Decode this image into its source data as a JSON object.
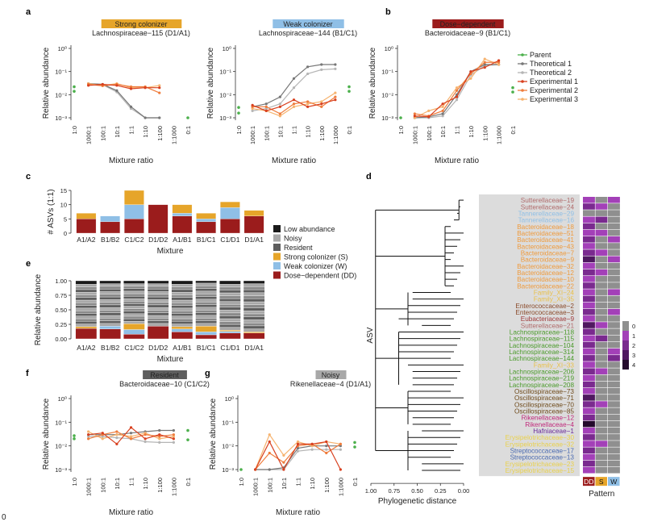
{
  "colors": {
    "parent": "#4cb04c",
    "theoretical1": "#777777",
    "theoretical2": "#b5b5b5",
    "experimental1": "#d8401f",
    "experimental2": "#ef7c3c",
    "experimental3": "#f6b36f",
    "low_abundance": "#1a1a1a",
    "noisy": "#a8a8a8",
    "resident": "#5e5e5e",
    "strong": "#e6a52a",
    "weak": "#8fbfe6",
    "dose": "#9b1c1c"
  },
  "panel_labels": {
    "a": "a",
    "b": "b",
    "c": "c",
    "d": "d",
    "e": "e",
    "f": "f",
    "g": "g"
  },
  "line_charts": [
    {
      "id": "a1",
      "badge": "Strong colonizer",
      "badge_color": "#e6a52a",
      "subtitle": "Lachnospiraceae−115 (D1/A1)",
      "xlabel": "Mixture ratio",
      "ylabel": "Relative abundance",
      "parent": [
        [
          0,
          0.022
        ],
        [
          0,
          0.014
        ],
        [
          8,
          0.001
        ]
      ],
      "series": {
        "t1": [
          0.03,
          0.028,
          0.015,
          0.003,
          0.001,
          0.001
        ],
        "t2": [
          0.03,
          0.027,
          0.013,
          0.0025,
          0.001,
          0.001
        ],
        "e1": [
          0.025,
          0.028,
          0.025,
          0.018,
          0.02,
          0.02
        ],
        "e2": [
          0.028,
          0.024,
          0.028,
          0.022,
          0.022,
          0.012
        ],
        "e3": [
          0.03,
          0.025,
          0.03,
          0.02,
          0.02,
          0.025
        ]
      }
    },
    {
      "id": "a2",
      "badge": "Weak colonizer",
      "badge_color": "#8fbfe6",
      "subtitle": "Lachnospiraceae−144 (B1/C1)",
      "xlabel": "Mixture ratio",
      "ylabel": "Relative abundance",
      "parent": [
        [
          0,
          0.0028
        ],
        [
          0,
          0.0016
        ],
        [
          8,
          0.022
        ],
        [
          8,
          0.014
        ]
      ],
      "series": {
        "t1": [
          0.003,
          0.004,
          0.008,
          0.05,
          0.16,
          0.2,
          0.2
        ],
        "t2": [
          0.002,
          0.0025,
          0.004,
          0.02,
          0.08,
          0.12,
          0.13
        ],
        "e1": [
          0.0035,
          0.002,
          0.003,
          0.006,
          0.003,
          0.004,
          0.006
        ],
        "e2": [
          0.003,
          0.003,
          0.0015,
          0.004,
          0.005,
          0.003,
          0.008
        ],
        "e3": [
          0.0025,
          0.002,
          0.0012,
          0.003,
          0.004,
          0.005,
          0.012
        ]
      }
    },
    {
      "id": "b",
      "badge": "Dose−dependent",
      "badge_color": "#9b1c1c",
      "subtitle": "Bacteroidaceae−9 (B1/C1)",
      "xlabel": "Mixture ratio",
      "ylabel": "Relative abundance",
      "parent": [
        [
          0,
          0.001
        ],
        [
          8,
          0.02
        ],
        [
          8,
          0.013
        ]
      ],
      "series": {
        "t1": [
          0.001,
          0.0011,
          0.0015,
          0.01,
          0.1,
          0.2,
          0.2
        ],
        "t2": [
          0.001,
          0.001,
          0.0012,
          0.006,
          0.07,
          0.18,
          0.2
        ],
        "e1": [
          0.0012,
          0.0011,
          0.004,
          0.008,
          0.1,
          0.15,
          0.3
        ],
        "e2": [
          0.0015,
          0.0012,
          0.002,
          0.015,
          0.08,
          0.25,
          0.25
        ],
        "e3": [
          0.001,
          0.002,
          0.003,
          0.02,
          0.05,
          0.35,
          0.2
        ]
      }
    },
    {
      "id": "f",
      "badge": "Resident",
      "badge_color": "#5e5e5e",
      "subtitle": "Bacteroidaceae−10 (C1/C2)",
      "xlabel": "Mixture ratio",
      "ylabel": "Relative abundance",
      "parent": [
        [
          0,
          0.027
        ],
        [
          0,
          0.02
        ],
        [
          8,
          0.045
        ],
        [
          8,
          0.018
        ]
      ],
      "series": {
        "t1": [
          0.03,
          0.03,
          0.03,
          0.035,
          0.04,
          0.045,
          0.045
        ],
        "t2": [
          0.025,
          0.025,
          0.022,
          0.02,
          0.015,
          0.014,
          0.014
        ],
        "e1": [
          0.03,
          0.035,
          0.012,
          0.06,
          0.02,
          0.03,
          0.02
        ],
        "e2": [
          0.02,
          0.03,
          0.04,
          0.02,
          0.03,
          0.025,
          0.03
        ],
        "e3": [
          0.04,
          0.02,
          0.03,
          0.025,
          0.035,
          0.02,
          0.025
        ]
      }
    },
    {
      "id": "g",
      "badge": "Noisy",
      "badge_color": "#a8a8a8",
      "subtitle": "Rikenellaceae−4 (D1/A1)",
      "xlabel": "Mixture ratio",
      "ylabel": "Relative abundance",
      "parent": [
        [
          0,
          0.001
        ],
        [
          8,
          0.014
        ],
        [
          8,
          0.009
        ]
      ],
      "series": {
        "t1": [
          0.001,
          0.001,
          0.0012,
          0.008,
          0.01,
          0.01,
          0.01
        ],
        "t2": [
          0.001,
          0.001,
          0.001,
          0.006,
          0.007,
          0.007,
          0.007
        ],
        "e1": [
          0.001,
          0.015,
          0.001,
          0.012,
          0.012,
          0.015,
          0.001
        ],
        "e2": [
          0.001,
          0.005,
          0.002,
          0.01,
          0.012,
          0.005,
          0.012
        ],
        "e3": [
          0.001,
          0.03,
          0.004,
          0.015,
          0.01,
          0.015,
          0.012
        ]
      }
    }
  ],
  "x_ticks": [
    "1:0",
    "1000:1",
    "100:1",
    "10:1",
    "1:1",
    "1:10",
    "1:100",
    "1:1000",
    "0:1"
  ],
  "y_ticks": [
    "10⁰",
    "10⁻¹",
    "10⁻²",
    "10⁻³"
  ],
  "legend_lines": [
    {
      "key": "parent",
      "label": "Parent"
    },
    {
      "key": "theoretical1",
      "label": "Theoretical 1"
    },
    {
      "key": "theoretical2",
      "label": "Theoretical 2"
    },
    {
      "key": "experimental1",
      "label": "Experimental 1"
    },
    {
      "key": "experimental2",
      "label": "Experimental 2"
    },
    {
      "key": "experimental3",
      "label": "Experimental 3"
    }
  ],
  "chart_data": {
    "type": "bar",
    "title": "# ASVs (1:1)",
    "xlabel": "Mixture",
    "ylabel": "# ASVs (1:1)",
    "ylim": [
      0,
      15
    ],
    "y_ticks": [
      "0",
      "5",
      "10",
      "15"
    ],
    "categories": [
      "A1/A2",
      "B1/B2",
      "C1/C2",
      "D1/D2",
      "A1/B1",
      "B1/C1",
      "C1/D1",
      "D1/A1"
    ],
    "series": [
      {
        "name": "Dose−dependent (DD)",
        "values": [
          5,
          4,
          5,
          10,
          6,
          4,
          5,
          6
        ]
      },
      {
        "name": "Weak colonizer (W)",
        "values": [
          0,
          2,
          5,
          0,
          1,
          1,
          4,
          0
        ]
      },
      {
        "name": "Strong colonizer (S)",
        "values": [
          2,
          0,
          5,
          0,
          3,
          2,
          2,
          2
        ]
      }
    ]
  },
  "legend_categories": [
    {
      "key": "low_abundance",
      "label": "Low abundance"
    },
    {
      "key": "noisy",
      "label": "Noisy"
    },
    {
      "key": "resident",
      "label": "Resident"
    },
    {
      "key": "strong",
      "label": "Strong colonizer (S)"
    },
    {
      "key": "weak",
      "label": "Weak colonizer (W)"
    },
    {
      "key": "dose",
      "label": "Dose−dependent (DD)"
    }
  ],
  "panel_e": {
    "ylabel": "Relative abundance",
    "xlabel": "Mixture",
    "y_ticks": [
      "1.00",
      "0.75",
      "0.50",
      "0.25",
      "0.00"
    ],
    "stacks": [
      {
        "dose": 0.18,
        "weak": 0,
        "strong": 0.03,
        "low": 0.06
      },
      {
        "dose": 0.17,
        "weak": 0.05,
        "strong": 0,
        "low": 0.05
      },
      {
        "dose": 0.08,
        "weak": 0.08,
        "strong": 0.1,
        "low": 0.05
      },
      {
        "dose": 0.22,
        "weak": 0,
        "strong": 0,
        "low": 0.05
      },
      {
        "dose": 0.12,
        "weak": 0.05,
        "strong": 0.04,
        "low": 0.06
      },
      {
        "dose": 0.07,
        "weak": 0.05,
        "strong": 0.1,
        "low": 0.04
      },
      {
        "dose": 0.1,
        "weak": 0.03,
        "strong": 0.02,
        "low": 0.06
      },
      {
        "dose": 0.1,
        "weak": 0,
        "strong": 0.02,
        "low": 0.05
      }
    ]
  },
  "panel_d": {
    "ylabel": "ASV",
    "xlabel": "Phylogenetic distance",
    "x_ticks": [
      "1.00",
      "0.75",
      "0.50",
      "0.25",
      "0.00"
    ],
    "pattern_label": "Pattern",
    "pattern_cols": [
      "DD",
      "S",
      "W"
    ],
    "scale_ticks": [
      "0",
      "1",
      "2",
      "3",
      "4"
    ],
    "asvs": [
      {
        "name": "Sutterellaceae−19",
        "color": "#b06b6b"
      },
      {
        "name": "Sutterellaceae−24",
        "color": "#b06b6b"
      },
      {
        "name": "Tannerellaceae−29",
        "color": "#8fbfe6"
      },
      {
        "name": "Tannerellaceae−16",
        "color": "#8fbfe6"
      },
      {
        "name": "Bacteroidaceae−18",
        "color": "#ef9a3c"
      },
      {
        "name": "Bacteroidaceae−51",
        "color": "#ef9a3c"
      },
      {
        "name": "Bacteroidaceae−41",
        "color": "#ef9a3c"
      },
      {
        "name": "Bacteroidaceae−43",
        "color": "#ef9a3c"
      },
      {
        "name": "Bacteroidaceae−7",
        "color": "#ef9a3c"
      },
      {
        "name": "Bacteroidaceae−9",
        "color": "#ef9a3c"
      },
      {
        "name": "Bacteroidaceae−32",
        "color": "#ef9a3c"
      },
      {
        "name": "Bacteroidaceae−12",
        "color": "#ef9a3c"
      },
      {
        "name": "Bacteroidaceae−10",
        "color": "#ef9a3c"
      },
      {
        "name": "Bacteroidaceae−22",
        "color": "#ef9a3c"
      },
      {
        "name": "Family_XI−24",
        "color": "#e9c04a"
      },
      {
        "name": "Family_XI−35",
        "color": "#e9c04a"
      },
      {
        "name": "Enterococcaceae−2",
        "color": "#8a4a2a"
      },
      {
        "name": "Enterococcaceae−3",
        "color": "#8a4a2a"
      },
      {
        "name": "Eubacteriaceae−9",
        "color": "#a03a3a"
      },
      {
        "name": "Sutterellaceae−21",
        "color": "#b06b6b"
      },
      {
        "name": "Lachnospiraceae−118",
        "color": "#4a9a2a"
      },
      {
        "name": "Lachnospiraceae−115",
        "color": "#4a9a2a"
      },
      {
        "name": "Lachnospiraceae−104",
        "color": "#4a9a2a"
      },
      {
        "name": "Lachnospiraceae−314",
        "color": "#4a9a2a"
      },
      {
        "name": "Lachnospiraceae−144",
        "color": "#4a9a2a"
      },
      {
        "name": "Family_XI−33",
        "color": "#e9c04a"
      },
      {
        "name": "Lachnospiraceae−206",
        "color": "#4a9a2a"
      },
      {
        "name": "Lachnospiraceae−219",
        "color": "#4a9a2a"
      },
      {
        "name": "Lachnospiraceae−208",
        "color": "#4a9a2a"
      },
      {
        "name": "Oscillospiraceae−73",
        "color": "#6e4a1a"
      },
      {
        "name": "Oscillospiraceae−71",
        "color": "#6e4a1a"
      },
      {
        "name": "Oscillospiraceae−70",
        "color": "#6e4a1a"
      },
      {
        "name": "Oscillospiraceae−85",
        "color": "#6e4a1a"
      },
      {
        "name": "Rikenellaceae−12",
        "color": "#c0287a"
      },
      {
        "name": "Rikenellaceae−4",
        "color": "#c0287a"
      },
      {
        "name": "Hafniaceae−1",
        "color": "#6a2a9a"
      },
      {
        "name": "Erysipelotrichaceae−30",
        "color": "#e9d04a"
      },
      {
        "name": "Erysipelotrichaceae−32",
        "color": "#e9d04a"
      },
      {
        "name": "Streptococcaceae−17",
        "color": "#4a6ab0"
      },
      {
        "name": "Streptococcaceae−13",
        "color": "#4a6ab0"
      },
      {
        "name": "Erysipelotrichaceae−23",
        "color": "#e9d04a"
      },
      {
        "name": "Erysipelotrichaceae−15",
        "color": "#e9d04a"
      }
    ],
    "heat": [
      [
        1,
        0,
        1
      ],
      [
        2,
        1,
        0
      ],
      [
        0,
        0,
        0
      ],
      [
        1,
        2,
        0
      ],
      [
        2,
        0,
        0
      ],
      [
        1,
        1,
        0
      ],
      [
        2,
        0,
        1
      ],
      [
        1,
        0,
        0
      ],
      [
        2,
        1,
        0
      ],
      [
        3,
        0,
        1
      ],
      [
        1,
        0,
        0
      ],
      [
        2,
        1,
        0
      ],
      [
        1,
        0,
        0
      ],
      [
        2,
        0,
        0
      ],
      [
        1,
        0,
        1
      ],
      [
        2,
        0,
        0
      ],
      [
        1,
        0,
        0
      ],
      [
        2,
        0,
        1
      ],
      [
        1,
        0,
        0
      ],
      [
        3,
        1,
        0
      ],
      [
        2,
        0,
        0
      ],
      [
        1,
        2,
        0
      ],
      [
        2,
        0,
        0
      ],
      [
        1,
        0,
        1
      ],
      [
        2,
        0,
        2
      ],
      [
        1,
        0,
        0
      ],
      [
        2,
        1,
        0
      ],
      [
        1,
        0,
        0
      ],
      [
        2,
        0,
        0
      ],
      [
        1,
        0,
        0
      ],
      [
        3,
        0,
        0
      ],
      [
        2,
        1,
        0
      ],
      [
        1,
        0,
        0
      ],
      [
        2,
        0,
        0
      ],
      [
        4,
        0,
        0
      ],
      [
        1,
        0,
        0
      ],
      [
        2,
        0,
        0
      ],
      [
        1,
        1,
        0
      ],
      [
        2,
        0,
        0
      ],
      [
        1,
        0,
        0
      ],
      [
        2,
        0,
        0
      ],
      [
        1,
        0,
        0
      ]
    ]
  },
  "footer_char": "0"
}
